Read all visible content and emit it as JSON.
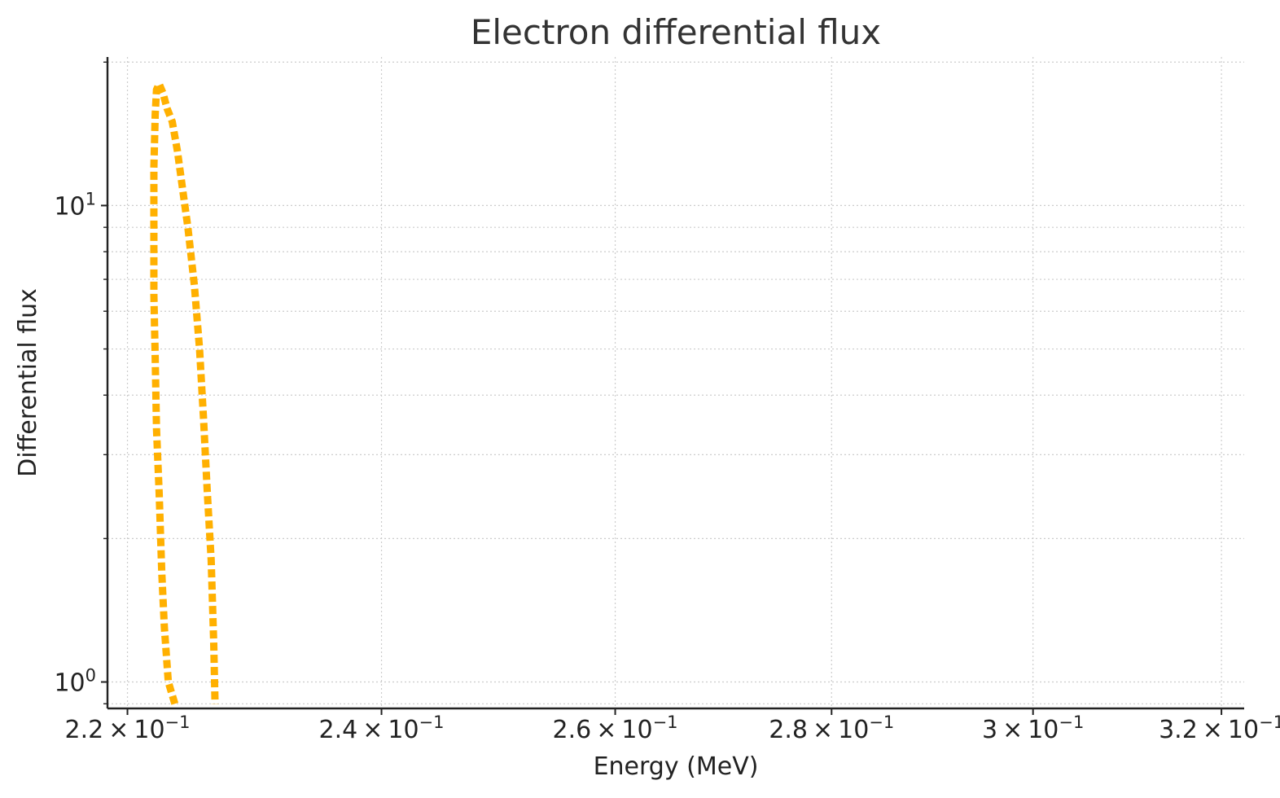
{
  "chart_data": {
    "type": "line",
    "title": "Electron differential flux",
    "xlabel": "Energy (MeV)",
    "ylabel": "Differential flux",
    "xscale": "log",
    "yscale": "log",
    "xlim": [
      0.2185,
      0.3225
    ],
    "ylim": [
      0.88,
      20.5
    ],
    "grid": true,
    "legend": "none",
    "line_style": "dashed",
    "color": "#FFB000",
    "x_ticks": [
      {
        "value": 0.22,
        "base": "2.2",
        "exp": "−1"
      },
      {
        "value": 0.24,
        "base": "2.4",
        "exp": "−1"
      },
      {
        "value": 0.26,
        "base": "2.6",
        "exp": "−1"
      },
      {
        "value": 0.28,
        "base": "2.8",
        "exp": "−1"
      },
      {
        "value": 0.3,
        "base": "3",
        "exp": "−1"
      },
      {
        "value": 0.32,
        "base": "3.2",
        "exp": "−1"
      }
    ],
    "y_ticks": [
      {
        "value": 1,
        "base": "10",
        "exp": "0"
      },
      {
        "value": 10,
        "base": "10",
        "exp": "1"
      }
    ],
    "series": [
      {
        "name": "",
        "x": [
          0.2236,
          0.2231,
          0.2228,
          0.2226,
          0.2224,
          0.2222,
          0.2221,
          0.222,
          0.222,
          0.222,
          0.2221,
          0.2222,
          0.2224,
          0.2227,
          0.223,
          0.2234,
          0.2238,
          0.2242,
          0.2246,
          0.2251,
          0.2255,
          0.2258,
          0.2261,
          0.2264,
          0.2266,
          0.2267
        ],
        "y": [
          0.9,
          1.0,
          1.3,
          1.7,
          2.5,
          3.4,
          4.8,
          6.5,
          8.8,
          12.0,
          15.5,
          17.5,
          18.0,
          17.2,
          16.0,
          15.0,
          13.0,
          10.8,
          9.0,
          6.8,
          5.0,
          3.6,
          2.5,
          1.8,
          1.2,
          0.9
        ]
      }
    ]
  }
}
